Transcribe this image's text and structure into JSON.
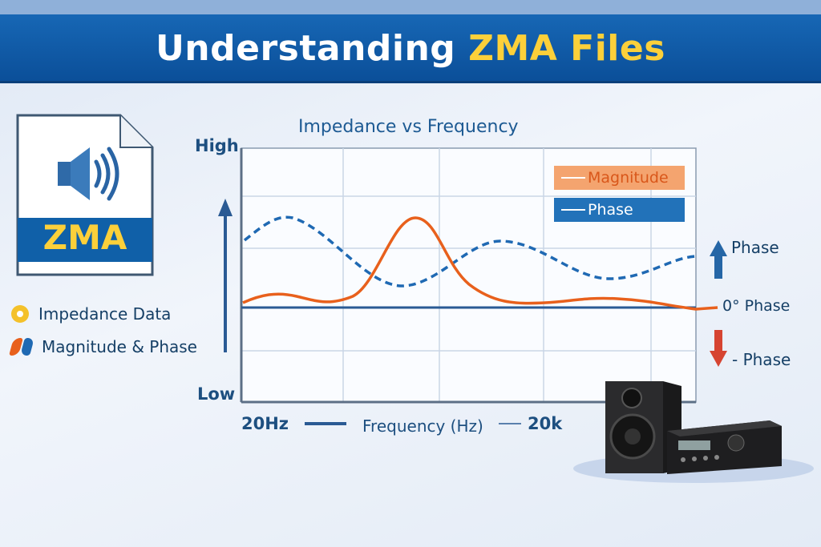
{
  "title": {
    "part1": "Understanding ",
    "part2": "ZMA Files"
  },
  "file_icon": {
    "label": "ZMA",
    "icon": "speaker-sound-icon"
  },
  "left_legend": [
    {
      "label": "Impedance Data",
      "icon": "yellow-dot-icon"
    },
    {
      "label": "Magnitude & Phase",
      "icon": "orange-blue-shape-icon"
    }
  ],
  "chart": {
    "title": "Impedance vs Frequency",
    "y_high": "High",
    "y_low": "Low",
    "x_start": "20Hz",
    "x_label": "Frequency (Hz)",
    "x_end": "20k",
    "legend": [
      {
        "label": "Magnitude",
        "color": "#f4a46f"
      },
      {
        "label": "Phase",
        "color": "#2272b9"
      }
    ],
    "side_labels": {
      "positive": "Phase",
      "zero": "0° Phase",
      "negative": "- Phase"
    }
  },
  "colors": {
    "banner": "#0f5aa6",
    "accent": "#fcd03a",
    "magnitude": "#e8601c",
    "phase": "#1f69b3"
  }
}
